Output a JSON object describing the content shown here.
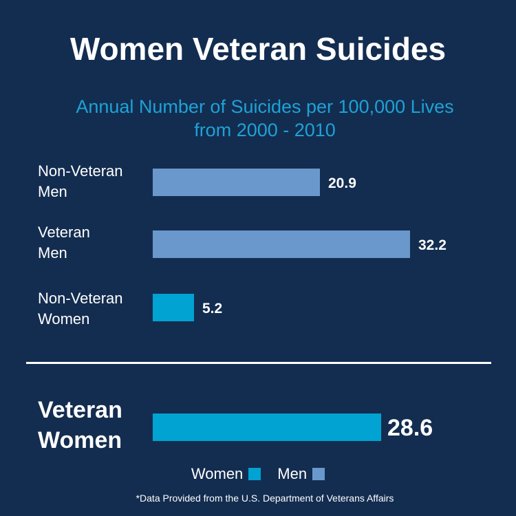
{
  "chart_data": {
    "type": "bar",
    "orientation": "horizontal",
    "title": "Women Veteran Suicides",
    "subtitle_lines": [
      "Annual Number of Suicides per 100,000 Lives",
      "from 2000 - 2010"
    ],
    "categories": [
      {
        "lines": [
          "Non-Veteran",
          "Men"
        ],
        "value": 20.9,
        "value_label": "20.9",
        "group": "Men"
      },
      {
        "lines": [
          "Veteran",
          "Men"
        ],
        "value": 32.2,
        "value_label": "32.2",
        "group": "Men"
      },
      {
        "lines": [
          "Non-Veteran",
          "Women"
        ],
        "value": 5.2,
        "value_label": "5.2",
        "group": "Women"
      },
      {
        "lines": [
          "Veteran",
          "Women"
        ],
        "value": 28.6,
        "value_label": "28.6",
        "group": "Women",
        "highlight": true
      }
    ],
    "xlim": [
      0,
      32.2
    ],
    "legend": {
      "placement": "bottom",
      "items": [
        {
          "name": "Women",
          "color": "#00a3d1"
        },
        {
          "name": "Men",
          "color": "#6a98cc"
        }
      ]
    },
    "footnote": "*Data Provided from the U.S. Department of Veterans Affairs"
  },
  "colors": {
    "background": "#132d50",
    "title": "#ffffff",
    "subtitle": "#1ea2d6",
    "women": "#00a3d1",
    "men": "#6a98cc"
  }
}
